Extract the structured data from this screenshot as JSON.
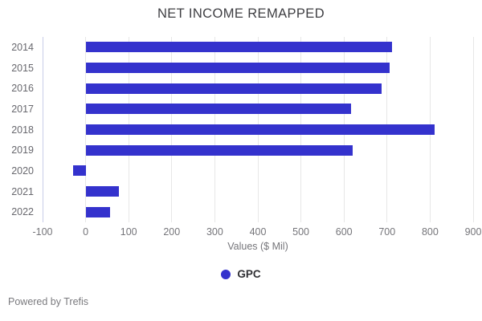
{
  "title": "NET INCOME REMAPPED",
  "axis": {
    "xlabel": "Values ($ Mil)"
  },
  "legend": {
    "items": [
      {
        "label": "GPC",
        "color": "#3432cd"
      }
    ]
  },
  "footer": {
    "text": "Powered by Trefis"
  },
  "colors": {
    "bar": "#3432cd",
    "grid": "#e7e7e7",
    "axis_line": "#c9cce8",
    "tick_text": "#75757a",
    "title_text": "#3e3e42",
    "footer_text": "#7a7a7e"
  },
  "chart_data": {
    "type": "bar",
    "orientation": "horizontal",
    "title": "NET INCOME REMAPPED",
    "categories": [
      "2014",
      "2015",
      "2016",
      "2017",
      "2018",
      "2019",
      "2020",
      "2021",
      "2022"
    ],
    "series": [
      {
        "name": "GPC",
        "color": "#3432cd",
        "values": [
          711,
          706,
          687,
          617,
          810,
          621,
          -29,
          78,
          57
        ]
      }
    ],
    "xlabel": "Values ($ Mil)",
    "ylabel": "",
    "xlim": [
      -100,
      900
    ],
    "xticks": [
      -100,
      0,
      100,
      200,
      300,
      400,
      500,
      600,
      700,
      800,
      900
    ],
    "grid": true,
    "legend_position": "bottom"
  }
}
